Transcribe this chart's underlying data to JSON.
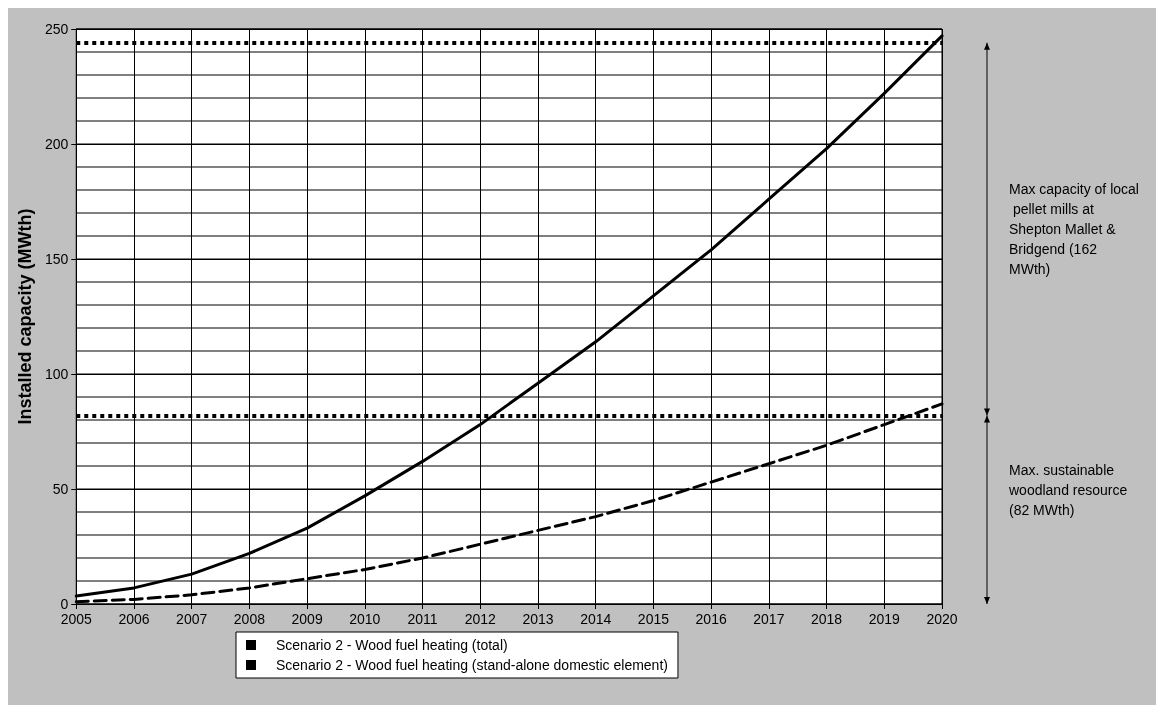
{
  "chart_data": {
    "type": "line",
    "ylabel": "Installed capacity (MWth)",
    "x": [
      2005,
      2006,
      2007,
      2008,
      2009,
      2010,
      2011,
      2012,
      2013,
      2014,
      2015,
      2016,
      2017,
      2018,
      2019,
      2020
    ],
    "series": [
      {
        "name": "Scenario 2 - Wood fuel heating (total)",
        "color": "#000000",
        "line_style": "solid",
        "values": [
          3.5,
          7,
          13,
          22,
          33,
          47,
          62,
          78,
          96,
          114,
          134,
          154,
          176,
          198,
          222,
          247
        ]
      },
      {
        "name": "Scenario 2 - Wood fuel heating (stand-alone domestic element)",
        "color": "#000000",
        "line_style": "dashed",
        "values": [
          1,
          2,
          4,
          7,
          11,
          15,
          20,
          26,
          32,
          38,
          45,
          53,
          61,
          69,
          78,
          87
        ]
      }
    ],
    "xlim": [
      2005,
      2020
    ],
    "xticks": [
      2005,
      2006,
      2007,
      2008,
      2009,
      2010,
      2011,
      2012,
      2013,
      2014,
      2015,
      2016,
      2017,
      2018,
      2019,
      2020
    ],
    "ylim": [
      0,
      250
    ],
    "yticks": [
      0,
      {
        "value": 10,
        "label": null
      },
      {
        "value": 20,
        "label": null
      },
      {
        "value": 30,
        "label": null
      },
      {
        "value": 40,
        "label": null
      },
      50,
      {
        "value": 60,
        "label": null
      },
      {
        "value": 70,
        "label": null
      },
      {
        "value": 80,
        "label": null
      },
      {
        "value": 90,
        "label": null
      },
      100,
      {
        "value": 110,
        "label": null
      },
      {
        "value": 120,
        "label": null
      },
      {
        "value": 130,
        "label": null
      },
      {
        "value": 140,
        "label": null
      },
      150,
      {
        "value": 160,
        "label": null
      },
      {
        "value": 170,
        "label": null
      },
      {
        "value": 180,
        "label": null
      },
      {
        "value": 190,
        "label": null
      },
      200,
      {
        "value": 210,
        "label": null
      },
      {
        "value": 220,
        "label": null
      },
      {
        "value": 230,
        "label": null
      },
      {
        "value": 240,
        "label": null
      },
      250
    ],
    "ref_lines": [
      {
        "axis": "y",
        "value": 82,
        "color": "#000000",
        "line_style": "dotted"
      },
      {
        "axis": "y",
        "value": 244,
        "color": "#000000",
        "line_style": "dotted"
      }
    ],
    "annotations": [
      "Max. sustainable woodland resource (82 MWth)",
      "Max capacity of local pellet mills at Shepton Mallet & Bridgend (162 MWth)"
    ],
    "grid": true,
    "legend": "bottom",
    "marker": "none"
  }
}
